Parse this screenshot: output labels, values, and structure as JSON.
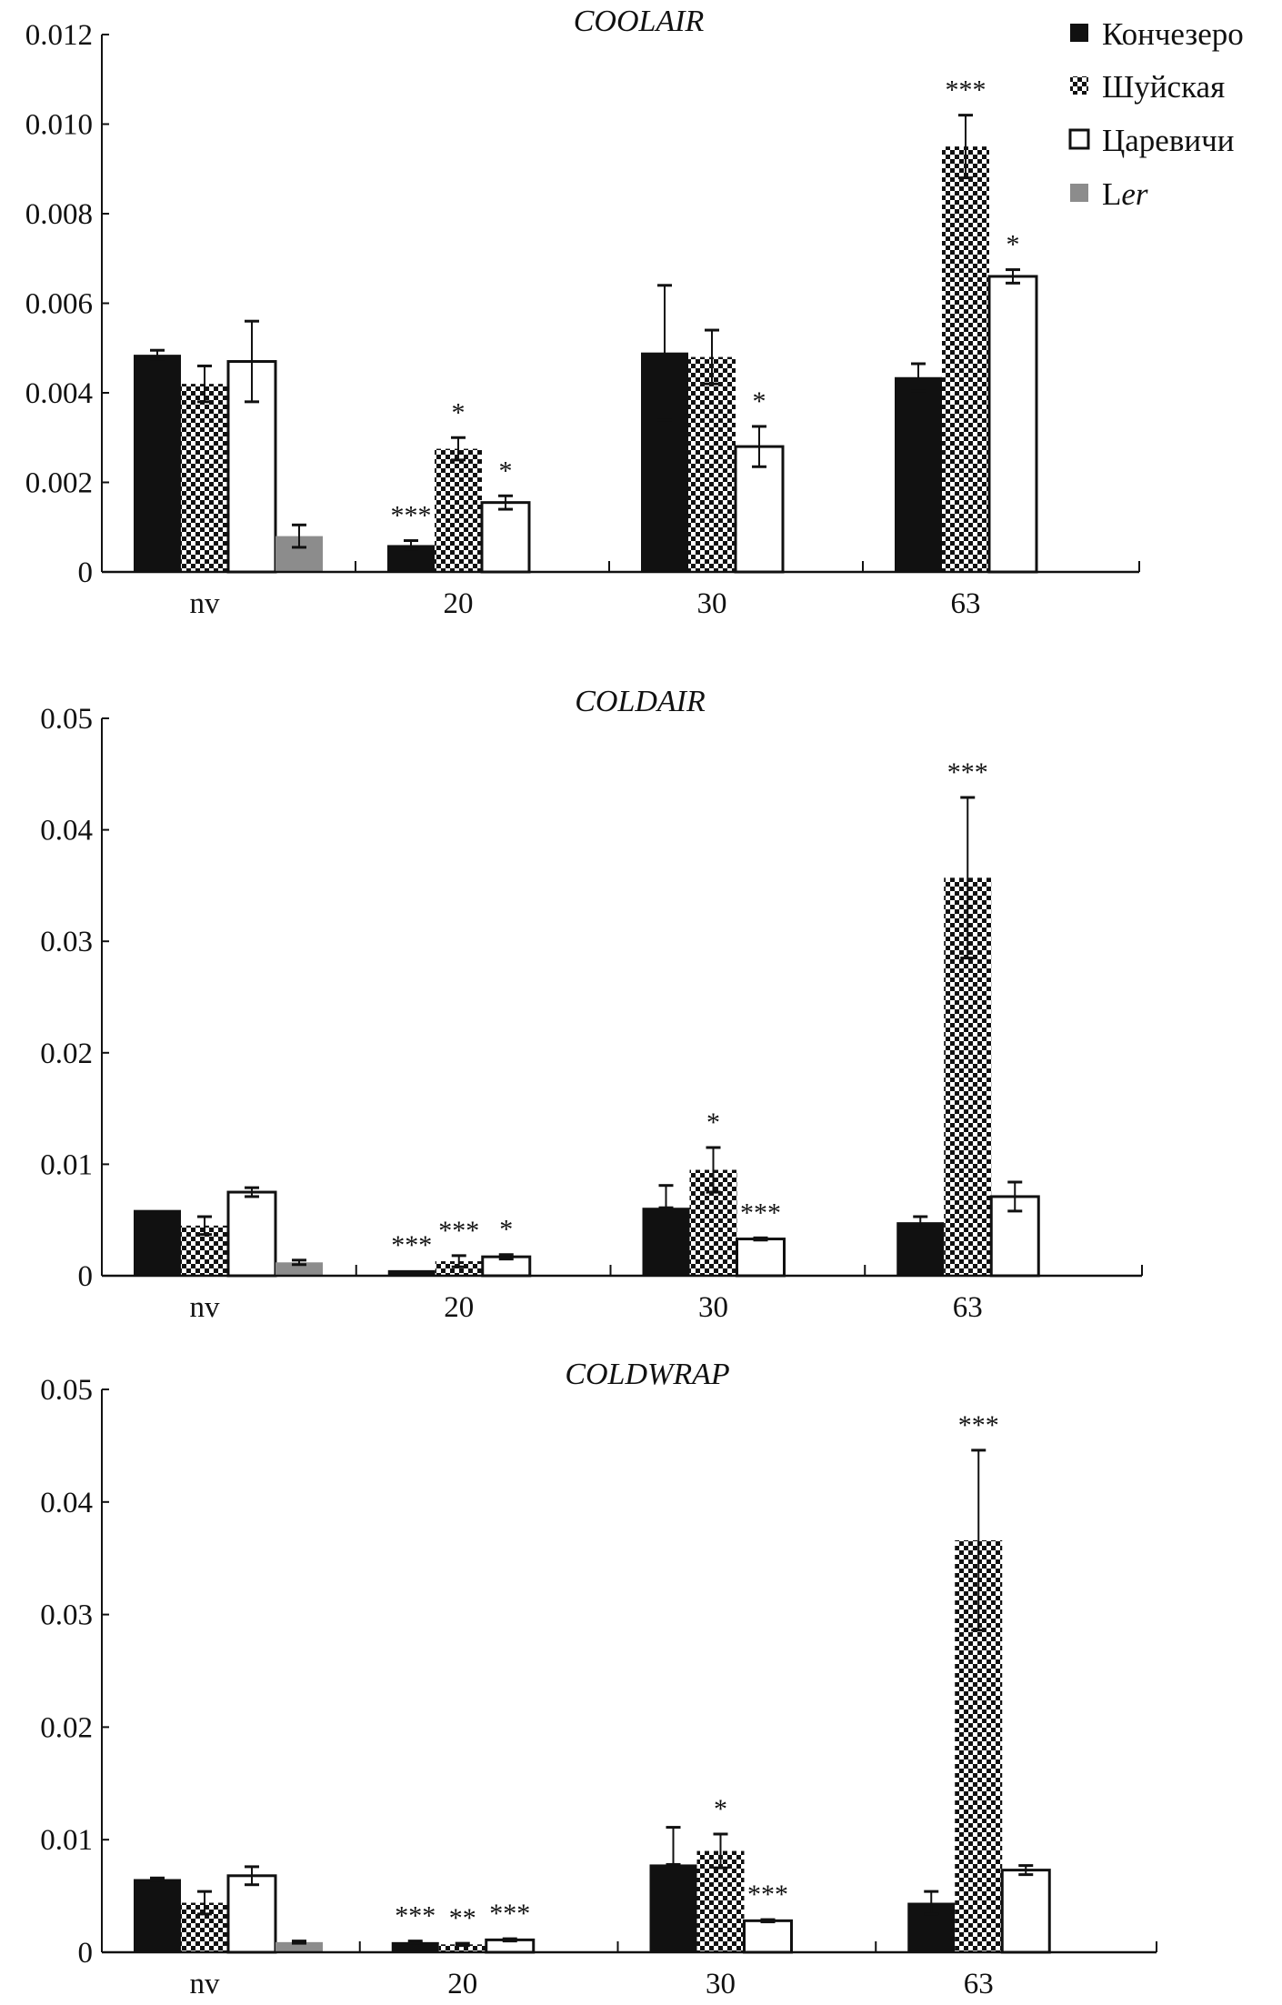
{
  "chart_data": {
    "type": "bar",
    "legend": {
      "placement": "top-right",
      "entries": [
        {
          "name": "Кончезеро",
          "suffix": "",
          "fill": "#111111",
          "pattern": "solid"
        },
        {
          "name": "Шуйская",
          "suffix": "",
          "fill": "#111111",
          "pattern": "checker"
        },
        {
          "name": "Царевичи",
          "suffix": "",
          "fill": "#ffffff",
          "pattern": "outline"
        },
        {
          "name": "L",
          "suffix": "er",
          "fill": "#8c8c8c",
          "pattern": "solid"
        }
      ]
    },
    "panels": [
      {
        "title": "COOLAIR",
        "categories": [
          "nv",
          "20",
          "30",
          "63"
        ],
        "ylim": [
          0,
          0.012
        ],
        "yticks": [
          "0",
          "0.002",
          "0.004",
          "0.006",
          "0.008",
          "0.010",
          "0.012"
        ],
        "ytick_values": [
          0,
          0.002,
          0.004,
          0.006,
          0.008,
          0.01,
          0.012
        ],
        "series": [
          {
            "name": "Кончезеро",
            "values": [
              0.00485,
              0.0006,
              0.0049,
              0.00435
            ],
            "errors": [
              0.0001,
              0.0001,
              0.0015,
              0.0003
            ],
            "stars": [
              "",
              "***",
              "",
              ""
            ]
          },
          {
            "name": "Шуйская",
            "values": [
              0.0042,
              0.00275,
              0.0048,
              0.0095
            ],
            "errors": [
              0.0004,
              0.00025,
              0.0006,
              0.0007
            ],
            "stars": [
              "",
              "*",
              "",
              "***"
            ]
          },
          {
            "name": "Царевичи",
            "values": [
              0.0047,
              0.00155,
              0.0028,
              0.0066
            ],
            "errors": [
              0.0009,
              0.00015,
              0.00045,
              0.00015
            ],
            "stars": [
              "",
              "*",
              "*",
              "*"
            ]
          },
          {
            "name": "Ler",
            "values": [
              0.0008,
              null,
              null,
              null
            ],
            "errors": [
              0.00025,
              null,
              null,
              null
            ],
            "stars": [
              "",
              "",
              "",
              ""
            ]
          }
        ]
      },
      {
        "title": "COLDAIR",
        "categories": [
          "nv",
          "20",
          "30",
          "63"
        ],
        "ylim": [
          0,
          0.05
        ],
        "yticks": [
          "0",
          "0.01",
          "0.02",
          "0.03",
          "0.04",
          "0.05"
        ],
        "ytick_values": [
          0,
          0.01,
          0.02,
          0.03,
          0.04,
          0.05
        ],
        "series": [
          {
            "name": "Кончезеро",
            "values": [
              0.0059,
              0.0005,
              0.0061,
              0.0048
            ],
            "errors": [
              0,
              0,
              0.002,
              0.0005
            ],
            "stars": [
              "",
              "***",
              "",
              ""
            ]
          },
          {
            "name": "Шуйская",
            "values": [
              0.0045,
              0.0013,
              0.0095,
              0.0357
            ],
            "errors": [
              0.0008,
              0.0005,
              0.002,
              0.0072
            ],
            "stars": [
              "",
              "***",
              "*",
              "***"
            ]
          },
          {
            "name": "Царевичи",
            "values": [
              0.0075,
              0.0017,
              0.0033,
              0.0071
            ],
            "errors": [
              0.0004,
              0.0002,
              0.0001,
              0.0013
            ],
            "stars": [
              "",
              "*",
              "***",
              ""
            ]
          },
          {
            "name": "Ler",
            "values": [
              0.0012,
              null,
              null,
              null
            ],
            "errors": [
              0.0002,
              null,
              null,
              null
            ],
            "stars": [
              "",
              "",
              "",
              ""
            ]
          }
        ]
      },
      {
        "title": "COLDWRAP",
        "categories": [
          "nv",
          "20",
          "30",
          "63"
        ],
        "ylim": [
          0,
          0.05
        ],
        "yticks": [
          "0",
          "0.01",
          "0.02",
          "0.03",
          "0.04",
          "0.05"
        ],
        "ytick_values": [
          0,
          0.01,
          0.02,
          0.03,
          0.04,
          0.05
        ],
        "series": [
          {
            "name": "Кончезеро",
            "values": [
              0.0065,
              0.0009,
              0.0078,
              0.0044
            ],
            "errors": [
              0.0001,
              0.0001,
              0.0033,
              0.001
            ],
            "stars": [
              "",
              "***",
              "",
              ""
            ]
          },
          {
            "name": "Шуйская",
            "values": [
              0.0044,
              0.0007,
              0.009,
              0.0366
            ],
            "errors": [
              0.001,
              0.0001,
              0.0015,
              0.008
            ],
            "stars": [
              "",
              "**",
              "*",
              "***"
            ]
          },
          {
            "name": "Царевичи",
            "values": [
              0.0068,
              0.0011,
              0.0028,
              0.0073
            ],
            "errors": [
              0.0008,
              0.0001,
              0.0001,
              0.0004
            ],
            "stars": [
              "",
              "***",
              "***",
              ""
            ]
          },
          {
            "name": "Ler",
            "values": [
              0.0009,
              null,
              null,
              null
            ],
            "errors": [
              0.0001,
              null,
              null,
              null
            ],
            "stars": [
              "",
              "",
              "",
              ""
            ]
          }
        ]
      }
    ]
  }
}
